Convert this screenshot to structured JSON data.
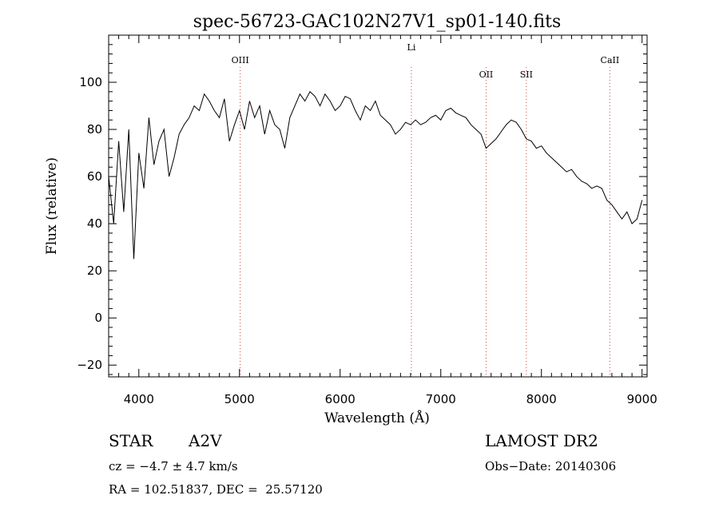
{
  "chart_data": {
    "type": "line",
    "title": "spec-56723-GAC102N27V1_sp01-140.fits",
    "xlabel": "Wavelength (Å)",
    "ylabel": "Flux (relative)",
    "xlim": [
      3700,
      9050
    ],
    "ylim": [
      -25,
      120
    ],
    "xticks": [
      4000,
      5000,
      6000,
      7000,
      8000,
      9000
    ],
    "yticks": [
      -20,
      0,
      20,
      40,
      60,
      80,
      100
    ],
    "series": [
      {
        "color": "#000000",
        "x": [
          3700,
          3750,
          3800,
          3850,
          3900,
          3950,
          4000,
          4050,
          4100,
          4150,
          4200,
          4250,
          4300,
          4350,
          4400,
          4450,
          4500,
          4550,
          4600,
          4650,
          4700,
          4750,
          4800,
          4850,
          4900,
          4950,
          5000,
          5050,
          5100,
          5150,
          5200,
          5250,
          5300,
          5350,
          5400,
          5450,
          5500,
          5550,
          5600,
          5650,
          5700,
          5750,
          5800,
          5850,
          5900,
          5950,
          6000,
          6050,
          6100,
          6150,
          6200,
          6250,
          6300,
          6350,
          6400,
          6450,
          6500,
          6550,
          6600,
          6650,
          6700,
          6750,
          6800,
          6850,
          6900,
          6950,
          7000,
          7050,
          7100,
          7150,
          7200,
          7250,
          7300,
          7350,
          7400,
          7450,
          7500,
          7550,
          7600,
          7650,
          7700,
          7750,
          7800,
          7850,
          7900,
          7950,
          8000,
          8050,
          8100,
          8150,
          8200,
          8250,
          8300,
          8350,
          8400,
          8450,
          8500,
          8550,
          8600,
          8650,
          8700,
          8750,
          8800,
          8850,
          8900,
          8950,
          9000
        ],
        "y": [
          60,
          40,
          75,
          45,
          80,
          25,
          70,
          55,
          85,
          65,
          75,
          80,
          60,
          68,
          78,
          82,
          85,
          90,
          88,
          95,
          92,
          88,
          85,
          93,
          75,
          82,
          88,
          80,
          92,
          85,
          90,
          78,
          88,
          82,
          80,
          72,
          85,
          90,
          95,
          92,
          96,
          94,
          90,
          95,
          92,
          88,
          90,
          94,
          93,
          88,
          84,
          90,
          88,
          92,
          86,
          84,
          82,
          78,
          80,
          83,
          82,
          84,
          82,
          83,
          85,
          86,
          84,
          88,
          89,
          87,
          86,
          85,
          82,
          80,
          78,
          72,
          74,
          76,
          79,
          82,
          84,
          83,
          80,
          76,
          75,
          72,
          73,
          70,
          68,
          66,
          64,
          62,
          63,
          60,
          58,
          57,
          55,
          56,
          55,
          50,
          48,
          45,
          42,
          45,
          40,
          42,
          50
        ]
      }
    ],
    "lines": [
      {
        "label": "OIII",
        "x": 5007
      },
      {
        "label": "Li",
        "x": 6708
      },
      {
        "label": "OII",
        "x": 7450
      },
      {
        "label": "SII",
        "x": 7850
      },
      {
        "label": "CaII",
        "x": 8680
      }
    ],
    "grid": false
  },
  "info": {
    "object_class": "STAR",
    "subclass": "A2V",
    "survey": "LAMOST DR2",
    "cz": "cz = −4.7 ± 4.7 km/s",
    "obs_date": "Obs−Date: 20140306",
    "radec": "RA = 102.51837, DEC =  25.57120"
  }
}
